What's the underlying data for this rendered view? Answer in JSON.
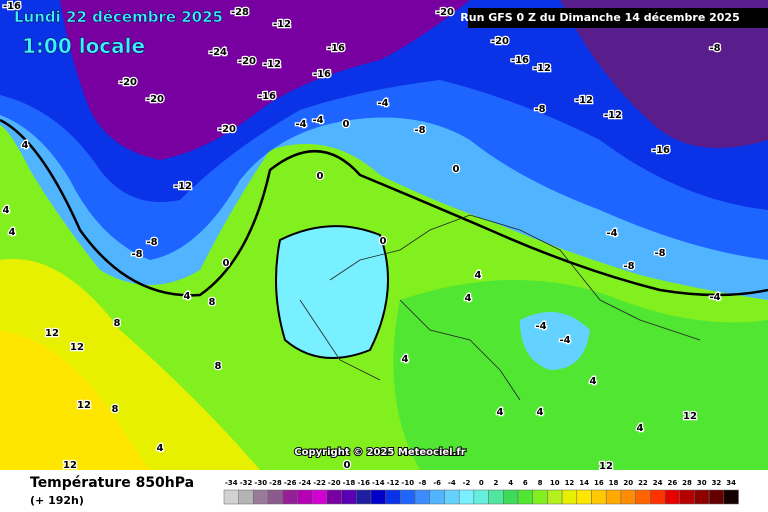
{
  "header": {
    "date": "Lundi 22 décembre 2025",
    "time": "1:00 locale",
    "run": "Run GFS 0 Z du Dimanche 14 décembre 2025"
  },
  "map": {
    "copyright": "Copyright © 2025 Meteociel.fr",
    "contour_labels": [
      -16,
      -20,
      -20,
      -24,
      -20,
      -28,
      -12,
      -12,
      -16,
      -20,
      -12,
      4,
      4,
      4,
      -8,
      -8,
      0,
      4,
      8,
      8,
      12,
      12,
      8,
      8,
      12,
      12,
      4,
      0,
      -4,
      -8,
      0,
      0,
      0,
      4,
      4,
      -4,
      -4,
      -8,
      -8,
      -4,
      -4,
      4,
      4,
      0,
      4,
      -12,
      -16,
      -8,
      -20,
      -16,
      -12,
      -12,
      -8,
      -20,
      -16,
      -16,
      -4,
      -4,
      12,
      12,
      4,
      4
    ]
  },
  "legend": {
    "title": "Température 850hPa",
    "lead": "(+ 192h)",
    "values": [
      -34,
      -32,
      -30,
      -28,
      -26,
      -24,
      -22,
      -20,
      -18,
      -16,
      -14,
      -12,
      -10,
      -8,
      -6,
      -4,
      -2,
      0,
      2,
      4,
      6,
      8,
      10,
      12,
      14,
      16,
      18,
      20,
      22,
      24,
      26,
      28,
      30,
      32,
      34
    ],
    "colors": [
      "#d2d2d2",
      "#b4b4b4",
      "#9a7a9a",
      "#8c5a8c",
      "#961e96",
      "#b400b4",
      "#d200d2",
      "#7800a0",
      "#5a00b4",
      "#1e1ea0",
      "#0000c8",
      "#0a32e6",
      "#1e64ff",
      "#3c8cff",
      "#50b4ff",
      "#64d2ff",
      "#78f0ff",
      "#64f0dc",
      "#50e6a0",
      "#3cdc5a",
      "#50e632",
      "#82f01e",
      "#b4f01e",
      "#e6f000",
      "#ffe600",
      "#ffc800",
      "#ffaa00",
      "#ff8c00",
      "#ff6400",
      "#ff3200",
      "#e60000",
      "#b40000",
      "#8c0000",
      "#640000",
      "#140000"
    ]
  }
}
